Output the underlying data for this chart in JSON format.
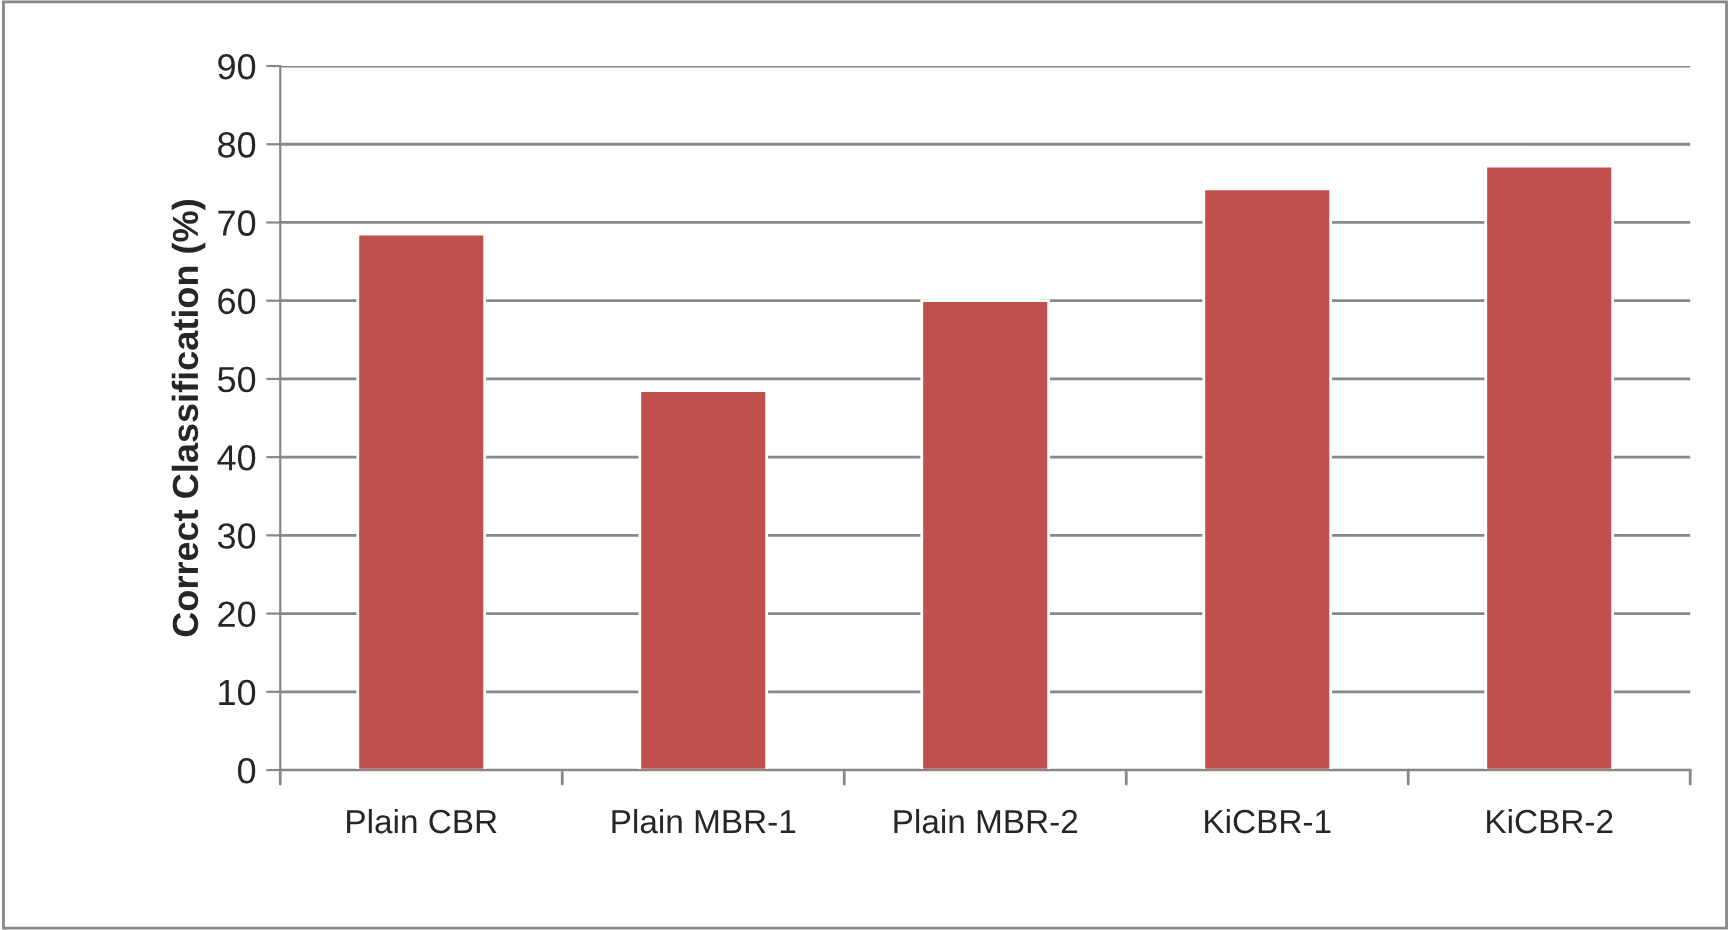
{
  "chart_data": {
    "type": "bar",
    "ylabel": "Correct Classification (%)",
    "categories": [
      "Plain CBR",
      "Plain MBR-1",
      "Plain MBR-2",
      "KiCBR-1",
      "KiCBR-2"
    ],
    "values": [
      68.5,
      48.5,
      60,
      74.3,
      77.2
    ],
    "color": "#c0504d",
    "ylim": [
      0,
      90
    ],
    "yticks": [
      0,
      10,
      20,
      30,
      40,
      50,
      60,
      70,
      80,
      90
    ],
    "grid": "y"
  }
}
